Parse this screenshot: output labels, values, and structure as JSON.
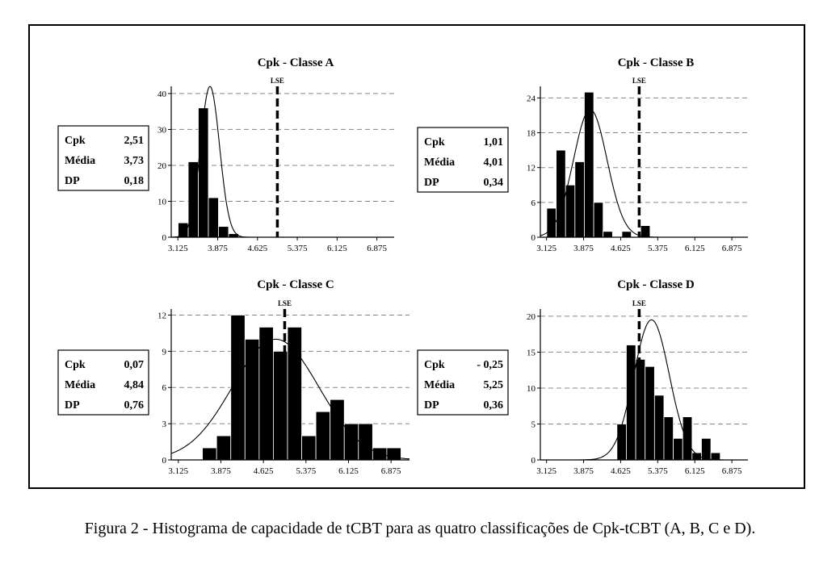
{
  "caption": "Figura 2 - Histograma de capacidade de tCBT para as quatro classificações de Cpk-tCBT (A, B, C e D).",
  "chart_data": [
    {
      "type": "bar",
      "title": "Cpk - Classe A",
      "limit_label": "LSE",
      "limit_value": 5.0,
      "xlim": [
        3.0,
        7.2
      ],
      "ylim": [
        0,
        42
      ],
      "xticks": [
        3.125,
        3.875,
        4.625,
        5.375,
        6.125,
        6.875
      ],
      "xtick_labels": [
        "3.125",
        "3.875",
        "4.625",
        "5.375",
        "6.125",
        "6.875"
      ],
      "yticks": [
        0,
        10,
        20,
        30,
        40
      ],
      "bin_width": 0.19,
      "bin_starts": [
        3.13,
        3.32,
        3.51,
        3.7,
        3.89,
        4.08,
        4.27
      ],
      "values": [
        4,
        21,
        36,
        11,
        3,
        1,
        0
      ],
      "curve": {
        "mean": 3.73,
        "sd": 0.18,
        "peak": 42
      },
      "stats": [
        {
          "label": "Cpk",
          "value": "2,51"
        },
        {
          "label": "Média",
          "value": "3,73"
        },
        {
          "label": "DP",
          "value": "0,18"
        }
      ],
      "grid": "horizontal dashed"
    },
    {
      "type": "bar",
      "title": "Cpk - Classe B",
      "limit_label": "LSE",
      "limit_value": 5.0,
      "xlim": [
        3.0,
        7.2
      ],
      "ylim": [
        0,
        26
      ],
      "xticks": [
        3.125,
        3.875,
        4.625,
        5.375,
        6.125,
        6.875
      ],
      "xtick_labels": [
        "3.125",
        "3.875",
        "4.625",
        "5.375",
        "6.125",
        "6.875"
      ],
      "yticks": [
        0,
        6,
        12,
        18,
        24
      ],
      "bin_width": 0.19,
      "bin_starts": [
        3.13,
        3.32,
        3.51,
        3.7,
        3.89,
        4.08,
        4.27,
        4.46,
        4.65,
        4.84,
        5.03,
        5.22,
        5.41,
        5.6
      ],
      "values": [
        5,
        15,
        9,
        13,
        25,
        6,
        1,
        0,
        1,
        0,
        2,
        0,
        0,
        0
      ],
      "curve": {
        "mean": 4.01,
        "sd": 0.34,
        "peak": 22
      },
      "stats": [
        {
          "label": "Cpk",
          "value": "1,01"
        },
        {
          "label": "Média",
          "value": "4,01"
        },
        {
          "label": "DP",
          "value": "0,34"
        }
      ],
      "grid": "horizontal dashed"
    },
    {
      "type": "bar",
      "title": "Cpk - Classe C",
      "limit_label": "LSE",
      "limit_value": 5.0,
      "xlim": [
        3.0,
        7.2
      ],
      "ylim": [
        0,
        12.5
      ],
      "xticks": [
        3.125,
        3.875,
        4.625,
        5.375,
        6.125,
        6.875
      ],
      "xtick_labels": [
        "3.125",
        "3.875",
        "4.625",
        "5.375",
        "6.125",
        "6.875"
      ],
      "yticks": [
        0,
        3,
        6,
        9,
        12
      ],
      "bin_width": 0.25,
      "bin_starts": [
        3.55,
        3.8,
        4.05,
        4.3,
        4.55,
        4.8,
        5.05,
        5.3,
        5.55,
        5.8,
        6.05,
        6.3,
        6.55,
        6.8
      ],
      "values": [
        1,
        2,
        12,
        10,
        11,
        9,
        11,
        2,
        4,
        5,
        3,
        3,
        1,
        1
      ],
      "curve": {
        "mean": 4.84,
        "sd": 0.76,
        "peak": 10
      },
      "stats": [
        {
          "label": "Cpk",
          "value": "0,07"
        },
        {
          "label": "Média",
          "value": "4,84"
        },
        {
          "label": "DP",
          "value": "0,76"
        }
      ],
      "grid": "horizontal dashed"
    },
    {
      "type": "bar",
      "title": "Cpk - Classe D",
      "limit_label": "LSE",
      "limit_value": 5.0,
      "xlim": [
        3.0,
        7.2
      ],
      "ylim": [
        0,
        21
      ],
      "xticks": [
        3.125,
        3.875,
        4.625,
        5.375,
        6.125,
        6.875
      ],
      "xtick_labels": [
        "3.125",
        "3.875",
        "4.625",
        "5.375",
        "6.125",
        "6.875"
      ],
      "yticks": [
        0,
        5,
        10,
        15,
        20
      ],
      "bin_width": 0.19,
      "bin_starts": [
        4.55,
        4.74,
        4.93,
        5.12,
        5.31,
        5.5,
        5.69,
        5.88,
        6.07,
        6.26,
        6.45,
        6.64
      ],
      "values": [
        5,
        16,
        14,
        13,
        9,
        6,
        3,
        6,
        1,
        3,
        1,
        0
      ],
      "curve": {
        "mean": 5.25,
        "sd": 0.36,
        "peak": 19.5
      },
      "stats": [
        {
          "label": "Cpk",
          "value": "- 0,25"
        },
        {
          "label": "Média",
          "value": "5,25"
        },
        {
          "label": "DP",
          "value": "0,36"
        }
      ],
      "grid": "horizontal dashed"
    }
  ]
}
